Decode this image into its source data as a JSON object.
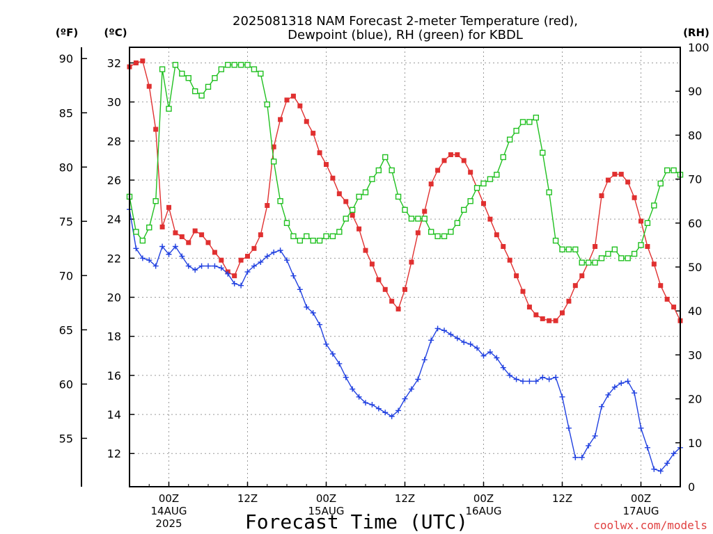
{
  "chart_data": {
    "type": "line",
    "title_line1": "2025081318 NAM Forecast 2-meter Temperature (red),",
    "title_line2": "Dewpoint (blue), RH (green) for KBDL",
    "xlabel": "Forecast Time (UTC)",
    "credit": "coolwx.com/models",
    "units": {
      "f": "(ºF)",
      "c": "(ºC)",
      "rh": "(RH)"
    },
    "x_range_hours": [
      0,
      84
    ],
    "y_left_f_ticks": [
      55,
      60,
      65,
      70,
      75,
      80,
      85,
      90
    ],
    "y_left_c_ticks": [
      12,
      14,
      16,
      18,
      20,
      22,
      24,
      26,
      28,
      30,
      32
    ],
    "y_right_rh_ticks": [
      0,
      10,
      20,
      30,
      40,
      50,
      60,
      70,
      80,
      90,
      100
    ],
    "y_c_range": [
      10.3,
      32.8
    ],
    "y_rh_range": [
      0,
      100
    ],
    "grid": true,
    "x_ticks": [
      {
        "hour": 6,
        "line1": "00Z",
        "line2": "14AUG",
        "line3": "2025"
      },
      {
        "hour": 18,
        "line1": "12Z",
        "line2": "",
        "line3": ""
      },
      {
        "hour": 30,
        "line1": "00Z",
        "line2": "15AUG",
        "line3": ""
      },
      {
        "hour": 42,
        "line1": "12Z",
        "line2": "",
        "line3": ""
      },
      {
        "hour": 54,
        "line1": "00Z",
        "line2": "16AUG",
        "line3": ""
      },
      {
        "hour": 66,
        "line1": "12Z",
        "line2": "",
        "line3": ""
      },
      {
        "hour": 78,
        "line1": "00Z",
        "line2": "17AUG",
        "line3": ""
      }
    ],
    "series": [
      {
        "id": "temperature",
        "units": "C",
        "color": "#e03030",
        "marker": "filled-square",
        "x": [
          0,
          1,
          2,
          3,
          4,
          5,
          6,
          7,
          8,
          9,
          10,
          11,
          12,
          13,
          14,
          15,
          16,
          17,
          18,
          19,
          20,
          21,
          22,
          23,
          24,
          25,
          26,
          27,
          28,
          29,
          30,
          31,
          32,
          33,
          34,
          35,
          36,
          37,
          38,
          39,
          40,
          41,
          42,
          43,
          44,
          45,
          46,
          47,
          48,
          49,
          50,
          51,
          52,
          53,
          54,
          55,
          56,
          57,
          58,
          59,
          60,
          61,
          62,
          63,
          64,
          65,
          66,
          67,
          68,
          69,
          70,
          71,
          72,
          73,
          74,
          75,
          76,
          77,
          78,
          79,
          80,
          81,
          82,
          83,
          84
        ],
        "values": [
          31.8,
          32.0,
          32.1,
          30.8,
          28.6,
          23.6,
          24.6,
          23.3,
          23.1,
          22.8,
          23.4,
          23.2,
          22.8,
          22.3,
          21.9,
          21.3,
          21.1,
          21.9,
          22.1,
          22.5,
          23.2,
          24.7,
          27.7,
          29.1,
          30.1,
          30.3,
          29.8,
          29.0,
          28.4,
          27.4,
          26.8,
          26.1,
          25.3,
          24.9,
          24.2,
          23.5,
          22.4,
          21.7,
          20.9,
          20.4,
          19.8,
          19.4,
          20.4,
          21.8,
          23.3,
          24.4,
          25.8,
          26.5,
          27.0,
          27.3,
          27.3,
          27.0,
          26.4,
          25.6,
          24.8,
          24.0,
          23.2,
          22.6,
          21.9,
          21.1,
          20.3,
          19.5,
          19.1,
          18.9,
          18.8,
          18.8,
          19.2,
          19.8,
          20.6,
          21.1,
          21.8,
          22.6,
          25.2,
          26.0,
          26.3,
          26.3,
          25.9,
          25.1,
          23.9,
          22.6,
          21.7,
          20.6,
          19.9,
          19.5,
          18.8
        ]
      },
      {
        "id": "dewpoint",
        "units": "C",
        "color": "#2040e0",
        "marker": "plus",
        "x": [
          0,
          1,
          2,
          3,
          4,
          5,
          6,
          7,
          8,
          9,
          10,
          11,
          12,
          13,
          14,
          15,
          16,
          17,
          18,
          19,
          20,
          21,
          22,
          23,
          24,
          25,
          26,
          27,
          28,
          29,
          30,
          31,
          32,
          33,
          34,
          35,
          36,
          37,
          38,
          39,
          40,
          41,
          42,
          43,
          44,
          45,
          46,
          47,
          48,
          49,
          50,
          51,
          52,
          53,
          54,
          55,
          56,
          57,
          58,
          59,
          60,
          61,
          62,
          63,
          64,
          65,
          66,
          67,
          68,
          69,
          70,
          71,
          72,
          73,
          74,
          75,
          76,
          77,
          78,
          79,
          80,
          81,
          82,
          83,
          84
        ],
        "values": [
          24.5,
          22.5,
          22.0,
          21.9,
          21.6,
          22.6,
          22.2,
          22.6,
          22.1,
          21.6,
          21.4,
          21.6,
          21.6,
          21.6,
          21.5,
          21.2,
          20.7,
          20.6,
          21.3,
          21.6,
          21.8,
          22.1,
          22.3,
          22.4,
          21.9,
          21.1,
          20.4,
          19.5,
          19.2,
          18.6,
          17.6,
          17.1,
          16.6,
          15.9,
          15.3,
          14.9,
          14.6,
          14.5,
          14.3,
          14.1,
          13.9,
          14.2,
          14.8,
          15.3,
          15.8,
          16.8,
          17.8,
          18.4,
          18.3,
          18.1,
          17.9,
          17.7,
          17.6,
          17.4,
          17.0,
          17.2,
          16.9,
          16.4,
          16.0,
          15.8,
          15.7,
          15.7,
          15.7,
          15.9,
          15.8,
          15.9,
          14.9,
          13.3,
          11.8,
          11.8,
          12.4,
          12.9,
          14.4,
          15.0,
          15.4,
          15.6,
          15.7,
          15.1,
          13.3,
          12.3,
          11.2,
          11.1,
          11.5,
          12.0,
          12.3
        ]
      },
      {
        "id": "rh",
        "units": "%",
        "color": "#20c020",
        "marker": "open-square",
        "x": [
          0,
          1,
          2,
          3,
          4,
          5,
          6,
          7,
          8,
          9,
          10,
          11,
          12,
          13,
          14,
          15,
          16,
          17,
          18,
          19,
          20,
          21,
          22,
          23,
          24,
          25,
          26,
          27,
          28,
          29,
          30,
          31,
          32,
          33,
          34,
          35,
          36,
          37,
          38,
          39,
          40,
          41,
          42,
          43,
          44,
          45,
          46,
          47,
          48,
          49,
          50,
          51,
          52,
          53,
          54,
          55,
          56,
          57,
          58,
          59,
          60,
          61,
          62,
          63,
          64,
          65,
          66,
          67,
          68,
          69,
          70,
          71,
          72,
          73,
          74,
          75,
          76,
          77,
          78,
          79,
          80,
          81,
          82,
          83,
          84
        ],
        "values": [
          66,
          58,
          56,
          59,
          65,
          95,
          86,
          96,
          94,
          93,
          90,
          89,
          91,
          93,
          95,
          96,
          96,
          96,
          96,
          95,
          94,
          87,
          74,
          65,
          60,
          57,
          56,
          57,
          56,
          56,
          57,
          57,
          58,
          61,
          63,
          66,
          67,
          70,
          72,
          75,
          72,
          66,
          63,
          61,
          61,
          61,
          58,
          57,
          57,
          58,
          60,
          63,
          65,
          68,
          69,
          70,
          71,
          75,
          79,
          81,
          83,
          83,
          84,
          76,
          67,
          56,
          54,
          54,
          54,
          51,
          51,
          51,
          52,
          53,
          54,
          52,
          52,
          53,
          55,
          60,
          64,
          69,
          72,
          72,
          71
        ]
      }
    ]
  }
}
